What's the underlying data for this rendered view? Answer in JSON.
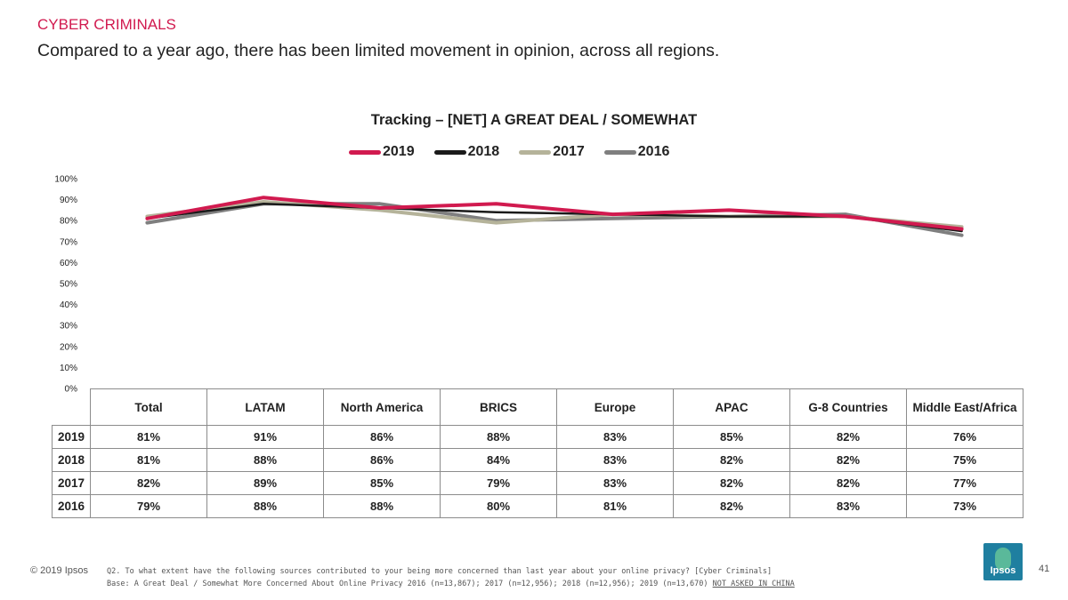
{
  "header": {
    "section": "CYBER CRIMINALS",
    "headline": "Compared to a year ago, there has been limited movement in opinion, across all regions."
  },
  "chart_data": {
    "type": "line",
    "title": "Tracking – [NET] A GREAT DEAL / SOMEWHAT",
    "categories": [
      "Total",
      "LATAM",
      "North America",
      "BRICS",
      "Europe",
      "APAC",
      "G-8 Countries",
      "Middle East/Africa"
    ],
    "ylim": [
      0,
      100
    ],
    "yticks": [
      "0%",
      "10%",
      "20%",
      "30%",
      "40%",
      "50%",
      "60%",
      "70%",
      "80%",
      "90%",
      "100%"
    ],
    "legend_position": "top",
    "series": [
      {
        "name": "2019",
        "color": "#d11a4f",
        "values": [
          81,
          91,
          86,
          88,
          83,
          85,
          82,
          76
        ]
      },
      {
        "name": "2018",
        "color": "#1a1a1a",
        "values": [
          81,
          88,
          86,
          84,
          83,
          82,
          82,
          75
        ]
      },
      {
        "name": "2017",
        "color": "#b5b39a",
        "values": [
          82,
          89,
          85,
          79,
          83,
          82,
          82,
          77
        ]
      },
      {
        "name": "2016",
        "color": "#7f7f7f",
        "values": [
          79,
          88,
          88,
          80,
          81,
          82,
          83,
          73
        ]
      }
    ],
    "table": {
      "headers": [
        "Total",
        "LATAM",
        "North America",
        "BRICS",
        "Europe",
        "APAC",
        "G-8 Countries",
        "Middle East/Africa"
      ],
      "rows": [
        {
          "year": "2019",
          "cells": [
            "81%",
            "91%",
            "86%",
            "88%",
            "83%",
            "85%",
            "82%",
            "76%"
          ]
        },
        {
          "year": "2018",
          "cells": [
            "81%",
            "88%",
            "86%",
            "84%",
            "83%",
            "82%",
            "82%",
            "75%"
          ]
        },
        {
          "year": "2017",
          "cells": [
            "82%",
            "89%",
            "85%",
            "79%",
            "83%",
            "82%",
            "82%",
            "77%"
          ]
        },
        {
          "year": "2016",
          "cells": [
            "79%",
            "88%",
            "88%",
            "80%",
            "81%",
            "82%",
            "83%",
            "73%"
          ]
        }
      ]
    }
  },
  "footer": {
    "copyright": "© 2019 Ipsos",
    "question": "Q2. To what extent have the following sources contributed to your being more concerned than last year about your online privacy? [Cyber Criminals]",
    "base": "Base: A Great Deal / Somewhat More Concerned About Online Privacy 2016 (n=13,867); 2017 (n=12,956); 2018 (n=12,956); 2019 (n=13,670)",
    "not_asked": "NOT ASKED IN CHINA",
    "logo_text": "Ipsos",
    "page_number": "41"
  }
}
